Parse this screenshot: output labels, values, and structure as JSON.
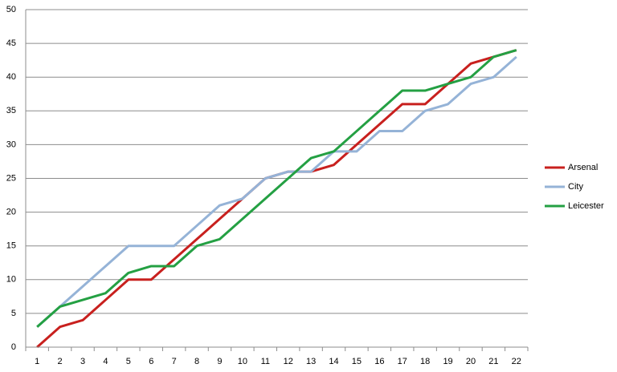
{
  "chart_data": {
    "type": "line",
    "categories": [
      "1",
      "2",
      "3",
      "4",
      "5",
      "6",
      "7",
      "8",
      "9",
      "10",
      "11",
      "12",
      "13",
      "14",
      "15",
      "16",
      "17",
      "18",
      "19",
      "20",
      "21",
      "22"
    ],
    "series": [
      {
        "name": "Arsenal",
        "color": "#c8201e",
        "values": [
          0,
          3,
          4,
          7,
          10,
          10,
          13,
          16,
          19,
          22,
          25,
          26,
          26,
          27,
          30,
          33,
          36,
          36,
          39,
          42,
          43,
          44
        ]
      },
      {
        "name": "City",
        "color": "#95b3d7",
        "values": [
          3,
          6,
          9,
          12,
          15,
          15,
          15,
          18,
          21,
          22,
          25,
          26,
          26,
          29,
          29,
          32,
          32,
          35,
          36,
          39,
          40,
          43
        ]
      },
      {
        "name": "Leicester",
        "color": "#24a043",
        "values": [
          3,
          6,
          7,
          8,
          11,
          12,
          12,
          15,
          16,
          19,
          22,
          25,
          28,
          29,
          32,
          35,
          38,
          38,
          39,
          40,
          43,
          44
        ]
      }
    ],
    "ylim": [
      0,
      50
    ],
    "yticks": [
      0,
      5,
      10,
      15,
      20,
      25,
      30,
      35,
      40,
      45,
      50
    ],
    "grid": true,
    "legend": "right"
  }
}
